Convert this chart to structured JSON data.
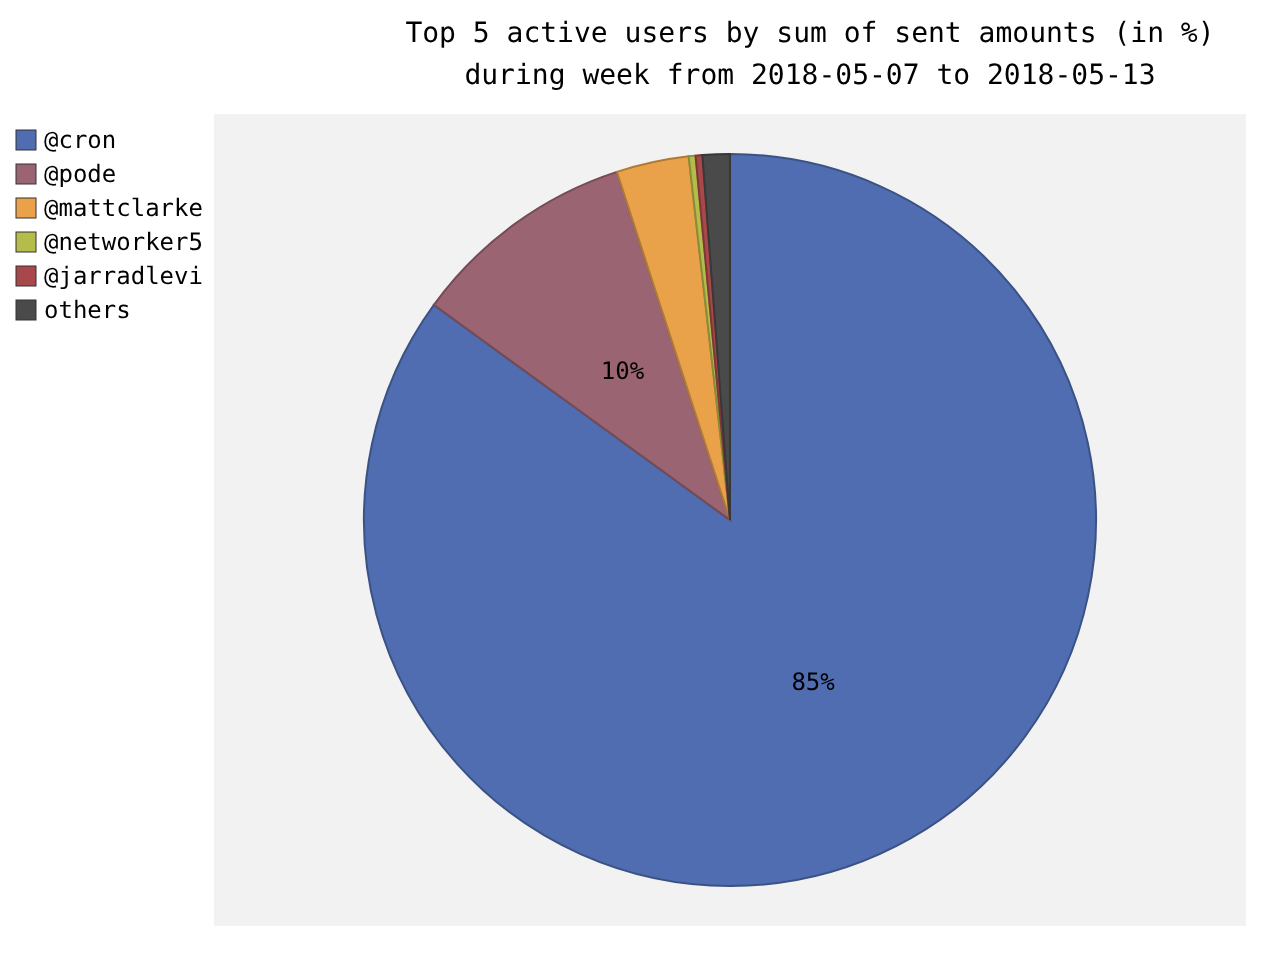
{
  "chart_data": {
    "type": "pie",
    "title": "Top 5 active users by sum of sent amounts (in %)\nduring week from 2018-05-07 to 2018-05-13",
    "categories": [
      "@cron",
      "@pode",
      "@mattclarke",
      "@networker5",
      "@jarradlevi",
      "others"
    ],
    "values": [
      85,
      10,
      3.2,
      0.3,
      0.3,
      1.2
    ],
    "colors": [
      "#4f6db0",
      "#9b6472",
      "#e9a24a",
      "#b5bd4a",
      "#a8484b",
      "#4a4a4a"
    ],
    "value_labels": [
      "85%",
      "10%",
      null,
      null,
      null,
      null
    ],
    "legend": "left"
  }
}
